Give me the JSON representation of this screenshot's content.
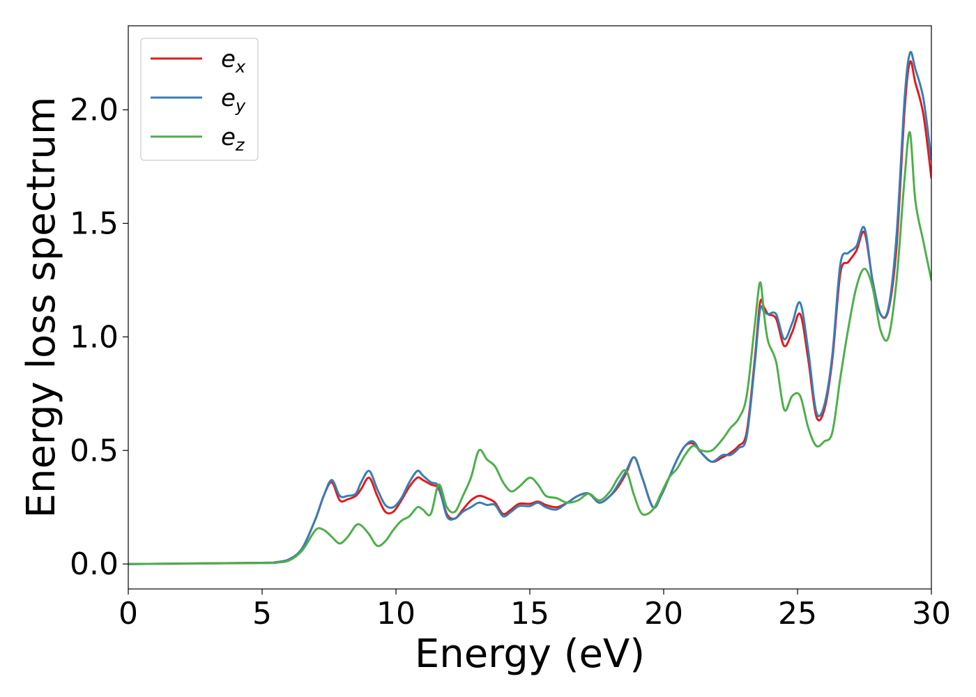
{
  "chart_data": {
    "type": "line",
    "title": "",
    "xlabel": "Energy (eV)",
    "ylabel": "Energy loss spectrum",
    "xlim": [
      0,
      30
    ],
    "ylim": [
      -0.11,
      2.37
    ],
    "xticks": [
      0,
      5,
      10,
      15,
      20,
      25,
      30
    ],
    "yticks": [
      0.0,
      0.5,
      1.0,
      1.5,
      2.0
    ],
    "xtick_labels": [
      "0",
      "5",
      "10",
      "15",
      "20",
      "25",
      "30"
    ],
    "ytick_labels": [
      "0.0",
      "0.5",
      "1.0",
      "1.5",
      "2.0"
    ],
    "grid": false,
    "legend_position": "top-left",
    "series": [
      {
        "name": "e",
        "subscript": "x",
        "color": "#e41a1c",
        "x": [
          0,
          5,
          5.5,
          6,
          6.5,
          7,
          7.3,
          7.6,
          7.9,
          8.2,
          8.5,
          8.7,
          9,
          9.3,
          9.6,
          9.9,
          10.2,
          10.5,
          10.8,
          11.0,
          11.3,
          11.6,
          11.9,
          12.2,
          12.5,
          12.8,
          13.1,
          13.4,
          13.7,
          14.0,
          14.3,
          14.6,
          15.0,
          15.3,
          15.6,
          16.0,
          16.4,
          16.8,
          17.2,
          17.6,
          18.0,
          18.3,
          18.6,
          18.9,
          19.2,
          19.6,
          19.9,
          20.2,
          20.5,
          20.8,
          21.1,
          21.4,
          21.8,
          22.2,
          22.5,
          22.8,
          23.1,
          23.4,
          23.6,
          23.75,
          23.9,
          24.2,
          24.5,
          24.8,
          25.1,
          25.4,
          25.7,
          26.0,
          26.3,
          26.6,
          26.9,
          27.2,
          27.5,
          27.8,
          28.1,
          28.4,
          28.7,
          29.0,
          29.2,
          29.4,
          29.7,
          30.0
        ],
        "y": [
          0.0,
          0.005,
          0.008,
          0.02,
          0.07,
          0.2,
          0.3,
          0.36,
          0.28,
          0.285,
          0.3,
          0.33,
          0.38,
          0.3,
          0.23,
          0.23,
          0.28,
          0.34,
          0.38,
          0.37,
          0.35,
          0.33,
          0.22,
          0.2,
          0.24,
          0.28,
          0.3,
          0.29,
          0.27,
          0.22,
          0.24,
          0.265,
          0.265,
          0.275,
          0.26,
          0.25,
          0.27,
          0.3,
          0.31,
          0.27,
          0.3,
          0.34,
          0.4,
          0.47,
          0.38,
          0.25,
          0.3,
          0.38,
          0.46,
          0.52,
          0.53,
          0.49,
          0.45,
          0.47,
          0.49,
          0.52,
          0.58,
          0.9,
          1.15,
          1.13,
          1.1,
          1.08,
          0.96,
          1.02,
          1.1,
          0.9,
          0.65,
          0.68,
          0.9,
          1.28,
          1.33,
          1.38,
          1.46,
          1.25,
          1.1,
          1.12,
          1.4,
          2.0,
          2.21,
          2.12,
          1.98,
          1.7
        ]
      },
      {
        "name": "e",
        "subscript": "y",
        "color": "#377eb8",
        "x": [
          0,
          5,
          5.5,
          6,
          6.5,
          7,
          7.3,
          7.6,
          7.9,
          8.2,
          8.5,
          8.7,
          9,
          9.3,
          9.6,
          9.9,
          10.2,
          10.5,
          10.8,
          11.0,
          11.3,
          11.6,
          11.9,
          12.2,
          12.5,
          12.8,
          13.1,
          13.4,
          13.7,
          14.0,
          14.3,
          14.6,
          15.0,
          15.3,
          15.6,
          16.0,
          16.4,
          16.8,
          17.2,
          17.6,
          18.0,
          18.3,
          18.6,
          18.9,
          19.2,
          19.6,
          19.9,
          20.2,
          20.5,
          20.8,
          21.1,
          21.4,
          21.8,
          22.2,
          22.5,
          22.8,
          23.1,
          23.4,
          23.6,
          23.75,
          23.9,
          24.2,
          24.5,
          24.8,
          25.1,
          25.4,
          25.7,
          26.0,
          26.3,
          26.6,
          26.9,
          27.2,
          27.5,
          27.8,
          28.1,
          28.4,
          28.7,
          29.0,
          29.2,
          29.4,
          29.7,
          30.0
        ],
        "y": [
          0.0,
          0.005,
          0.008,
          0.02,
          0.07,
          0.2,
          0.3,
          0.37,
          0.3,
          0.3,
          0.31,
          0.36,
          0.41,
          0.33,
          0.26,
          0.25,
          0.29,
          0.36,
          0.41,
          0.39,
          0.36,
          0.34,
          0.21,
          0.2,
          0.23,
          0.25,
          0.27,
          0.26,
          0.26,
          0.21,
          0.23,
          0.255,
          0.255,
          0.27,
          0.25,
          0.24,
          0.27,
          0.3,
          0.31,
          0.27,
          0.3,
          0.35,
          0.41,
          0.47,
          0.38,
          0.25,
          0.3,
          0.38,
          0.46,
          0.52,
          0.54,
          0.49,
          0.45,
          0.48,
          0.48,
          0.51,
          0.56,
          0.88,
          1.12,
          1.11,
          1.1,
          1.1,
          0.99,
          1.06,
          1.15,
          0.94,
          0.67,
          0.7,
          0.92,
          1.32,
          1.37,
          1.4,
          1.48,
          1.25,
          1.1,
          1.13,
          1.45,
          2.05,
          2.25,
          2.18,
          2.05,
          1.78
        ]
      },
      {
        "name": "e",
        "subscript": "z",
        "color": "#4daf4a",
        "x": [
          0,
          5,
          5.5,
          6,
          6.5,
          7,
          7.3,
          7.6,
          7.9,
          8.2,
          8.5,
          8.7,
          9,
          9.3,
          9.6,
          9.9,
          10.2,
          10.5,
          10.8,
          11.0,
          11.3,
          11.6,
          11.9,
          12.2,
          12.5,
          12.8,
          13.1,
          13.4,
          13.7,
          14.0,
          14.3,
          14.6,
          15.0,
          15.3,
          15.6,
          16.0,
          16.4,
          16.8,
          17.2,
          17.6,
          18.0,
          18.3,
          18.6,
          18.9,
          19.2,
          19.6,
          19.9,
          20.2,
          20.5,
          20.8,
          21.1,
          21.4,
          21.8,
          22.2,
          22.5,
          22.8,
          23.1,
          23.4,
          23.6,
          23.75,
          23.9,
          24.2,
          24.5,
          24.8,
          25.1,
          25.4,
          25.7,
          26.0,
          26.3,
          26.6,
          26.9,
          27.2,
          27.5,
          27.8,
          28.1,
          28.4,
          28.7,
          29.0,
          29.2,
          29.4,
          29.7,
          30.0
        ],
        "y": [
          0.0,
          0.004,
          0.006,
          0.015,
          0.06,
          0.15,
          0.15,
          0.12,
          0.09,
          0.12,
          0.17,
          0.17,
          0.13,
          0.08,
          0.1,
          0.15,
          0.19,
          0.21,
          0.25,
          0.24,
          0.22,
          0.35,
          0.25,
          0.23,
          0.3,
          0.38,
          0.5,
          0.46,
          0.43,
          0.36,
          0.32,
          0.34,
          0.38,
          0.35,
          0.3,
          0.29,
          0.27,
          0.28,
          0.31,
          0.28,
          0.32,
          0.38,
          0.41,
          0.3,
          0.22,
          0.24,
          0.31,
          0.38,
          0.42,
          0.48,
          0.52,
          0.5,
          0.5,
          0.55,
          0.6,
          0.64,
          0.74,
          1.05,
          1.24,
          1.1,
          0.98,
          0.89,
          0.68,
          0.74,
          0.74,
          0.6,
          0.52,
          0.54,
          0.58,
          0.82,
          1.04,
          1.22,
          1.3,
          1.22,
          1.03,
          1.0,
          1.25,
          1.7,
          1.9,
          1.6,
          1.42,
          1.25
        ]
      }
    ]
  }
}
